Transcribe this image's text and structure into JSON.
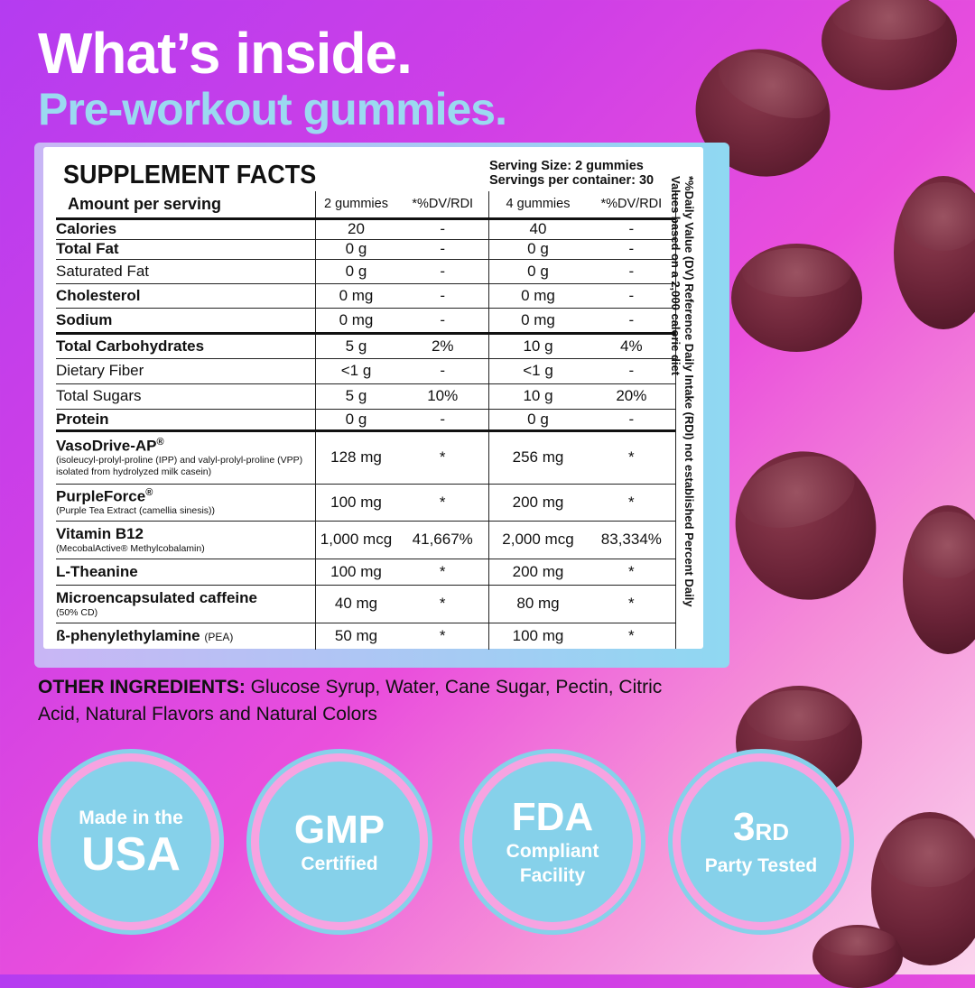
{
  "headline": "What’s inside.",
  "subheadline": "Pre-workout gummies.",
  "facts": {
    "title": "SUPPLEMENT FACTS",
    "serving_size": "Serving Size: 2 gummies",
    "servings_per_container": "Servings per container: 30",
    "header": [
      "Amount per serving",
      "2 gummies",
      "*%DV/RDI",
      "4 gummies",
      "*%DV/RDI"
    ],
    "rows": {
      "calories": [
        "Calories",
        "20",
        "-",
        "40",
        "-"
      ],
      "total_fat": [
        "Total Fat",
        "0 g",
        "-",
        "0 g",
        "-"
      ],
      "saturated_fat": [
        "Saturated Fat",
        "0 g",
        "-",
        "0 g",
        "-"
      ],
      "cholesterol": [
        "Cholesterol",
        "0 mg",
        "-",
        "0 mg",
        "-"
      ],
      "sodium": [
        "Sodium",
        "0 mg",
        "-",
        "0 mg",
        "-"
      ],
      "total_carbs": [
        "Total Carbohydrates",
        "5 g",
        "2%",
        "10 g",
        "4%"
      ],
      "dietary_fiber": [
        "Dietary Fiber",
        "<1 g",
        "-",
        "<1 g",
        "-"
      ],
      "total_sugars": [
        "Total Sugars",
        "5 g",
        "10%",
        "10 g",
        "20%"
      ],
      "protein": [
        "Protein",
        "0 g",
        "-",
        "0 g",
        "-"
      ],
      "vasodrive": [
        "VasoDrive-AP",
        "128 mg",
        "*",
        "256 mg",
        "*"
      ],
      "purpleforce": [
        "PurpleForce",
        "100 mg",
        "*",
        "200 mg",
        "*"
      ],
      "b12": [
        "Vitamin B12",
        "1,000 mcg",
        "41,667%",
        "2,000 mcg",
        "83,334%"
      ],
      "theanine": [
        "L-Theanine",
        "100 mg",
        "*",
        "200 mg",
        "*"
      ],
      "caffeine": [
        "Microencapsulated caffeine",
        "40 mg",
        "*",
        "80 mg",
        "*"
      ],
      "pea": [
        "ß-phenylethylamine",
        "50 mg",
        "*",
        "100 mg",
        "*"
      ]
    },
    "vasodrive_sub": "(isoleucyl-prolyl-proline (IPP) and valyl-prolyl-proline (VPP) isolated from hydrolyzed milk casein)",
    "purpleforce_sub": "(Purple Tea Extract (camellia sinesis))",
    "b12_sub": "(MecobalActive® Methylcobalamin)",
    "caffeine_sub": "(50% CD)",
    "pea_suffix": "(PEA)",
    "reg_mark": "®",
    "side_note": "*%Daily Value (DV) Reference Daily Intake (RDI) not established Percent Daily Values based on a 2,000 calorie diet"
  },
  "other_ingredients": {
    "label": "OTHER INGREDIENTS:",
    "text": " Glucose Syrup, Water, Cane Sugar, Pectin, Citric Acid, Natural Flavors and Natural Colors"
  },
  "badges": {
    "usa": {
      "top": "Made in the",
      "main": "USA"
    },
    "gmp": {
      "main": "GMP",
      "sub": "Certified"
    },
    "fda": {
      "main": "FDA",
      "sub1": "Compliant",
      "sub2": "Facility"
    },
    "third": {
      "num": "3",
      "sup": "RD",
      "sub": "Party Tested"
    }
  },
  "colors": {
    "accent_blue": "#86d1ea",
    "accent_pink": "#f7a3e1",
    "gummy": "#6a2337"
  }
}
